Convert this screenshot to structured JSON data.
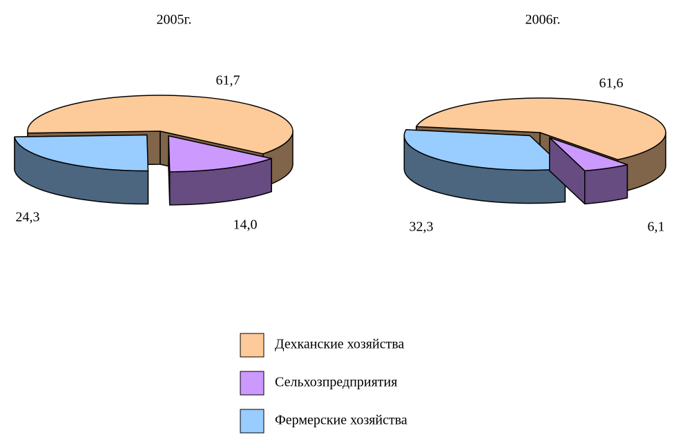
{
  "chart_data": [
    {
      "type": "pie3d",
      "title": "2005г.",
      "categories": [
        "Дехканские хозяйства",
        "Сельхозпредприятия",
        "Фермерские хозяйства"
      ],
      "values": [
        61.7,
        14.0,
        24.3
      ],
      "value_labels": [
        "61,7",
        "14,0",
        "24,3"
      ],
      "colors": [
        "#fdca99",
        "#cc99ff",
        "#99ccff"
      ],
      "side_colors": [
        "#80654a",
        "#664c80",
        "#4c6680"
      ]
    },
    {
      "type": "pie3d",
      "title": "2006г.",
      "categories": [
        "Дехканские хозяйства",
        "Сельхозпредприятия",
        "Фермерские хозяйства"
      ],
      "values": [
        61.6,
        6.1,
        32.3
      ],
      "value_labels": [
        "61,6",
        "6,1",
        "32,3"
      ],
      "colors": [
        "#fdca99",
        "#cc99ff",
        "#99ccff"
      ],
      "side_colors": [
        "#80654a",
        "#664c80",
        "#4c6680"
      ]
    }
  ]
}
